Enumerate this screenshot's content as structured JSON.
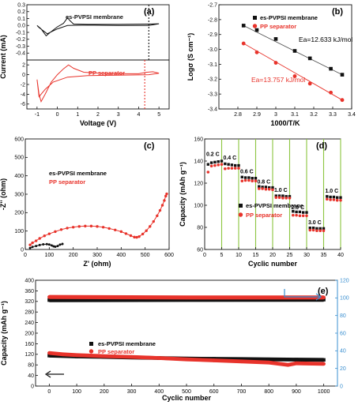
{
  "colors": {
    "black": "#111111",
    "red": "#e8332b",
    "blue": "#3a8fd0",
    "green": "#8bc53f"
  },
  "chart_data": [
    {
      "id": "a",
      "panel_label": "(a)",
      "type": "line",
      "xlabel": "Voltage (V)",
      "ylabel": "Current (mA)",
      "xlim": [
        -1.5,
        5.5
      ],
      "xticks": [
        -1,
        0,
        1,
        2,
        3,
        4,
        5
      ],
      "top": {
        "ylim": [
          -0.5,
          0.3
        ],
        "yticks": [
          0.3,
          0.2,
          0.1,
          0.0,
          -0.1,
          -0.2,
          -0.3,
          -0.4,
          -0.5
        ],
        "legend": "es-PVPSI membrane",
        "marker_x": 4.5,
        "loop": [
          [
            -1,
            0.0
          ],
          [
            -0.8,
            -0.05
          ],
          [
            -0.55,
            -0.15
          ],
          [
            -0.35,
            -0.1
          ],
          [
            0,
            -0.02
          ],
          [
            0.3,
            0.03
          ],
          [
            0.5,
            0.11
          ],
          [
            0.62,
            0.07
          ],
          [
            0.8,
            0.02
          ],
          [
            1.5,
            0.015
          ],
          [
            3,
            0.015
          ],
          [
            4.5,
            0.02
          ],
          [
            5,
            0.025
          ],
          [
            4.5,
            0.0
          ],
          [
            3,
            0.0
          ],
          [
            1.5,
            0.005
          ],
          [
            0.5,
            0.0
          ],
          [
            0,
            -0.05
          ],
          [
            -0.5,
            -0.12
          ],
          [
            -0.9,
            -0.03
          ],
          [
            -1,
            0.0
          ]
        ]
      },
      "bottom": {
        "ylim": [
          -7,
          3
        ],
        "yticks": [
          2,
          0,
          -2,
          -4,
          -6
        ],
        "legend": "PP separator",
        "marker_x": 4.3,
        "loop": [
          [
            -1,
            -1
          ],
          [
            -0.9,
            -4
          ],
          [
            -0.8,
            -5.5
          ],
          [
            -0.6,
            -4
          ],
          [
            -0.3,
            -1.5
          ],
          [
            0,
            0
          ],
          [
            0.3,
            1.2
          ],
          [
            0.55,
            2.0
          ],
          [
            0.8,
            1.3
          ],
          [
            1.3,
            0.5
          ],
          [
            2.5,
            0.2
          ],
          [
            4,
            0.2
          ],
          [
            4.4,
            0.5
          ],
          [
            4.7,
            0.6
          ],
          [
            5,
            0.3
          ],
          [
            4.5,
            0.0
          ],
          [
            3,
            -0.1
          ],
          [
            1.5,
            -0.2
          ],
          [
            0.5,
            -0.5
          ],
          [
            -0.2,
            -1.5
          ],
          [
            -0.6,
            -3
          ],
          [
            -0.9,
            -4.5
          ],
          [
            -1,
            -1
          ]
        ]
      }
    },
    {
      "id": "b",
      "panel_label": "(b)",
      "type": "scatter",
      "xlabel": "1000/T/K",
      "ylabel": "Logσ (S cm⁻¹)",
      "xlim": [
        2.7,
        3.4
      ],
      "xticks": [
        2.8,
        2.9,
        3.0,
        3.1,
        3.2,
        3.3,
        3.4
      ],
      "ylim": [
        -3.4,
        -2.7
      ],
      "yticks": [
        -2.7,
        -2.8,
        -2.9,
        -3.0,
        -3.1,
        -3.2,
        -3.3,
        -3.4
      ],
      "series": [
        {
          "name": "es-PVPSI membrane",
          "color": "black",
          "marker": "square",
          "x": [
            2.83,
            2.9,
            3.0,
            3.1,
            3.18,
            3.29,
            3.35
          ],
          "y": [
            -2.84,
            -2.87,
            -2.93,
            -3.01,
            -3.06,
            -3.13,
            -3.17
          ],
          "fit": [
            [
              2.83,
              -2.84
            ],
            [
              3.35,
              -3.17
            ]
          ],
          "annotation": "Ea=12.633 kJ/mol"
        },
        {
          "name": "PP separator",
          "color": "red",
          "marker": "circle",
          "x": [
            2.83,
            2.9,
            3.0,
            3.1,
            3.18,
            3.29,
            3.35
          ],
          "y": [
            -2.96,
            -3.02,
            -3.09,
            -3.18,
            -3.23,
            -3.29,
            -3.34
          ],
          "fit": [
            [
              2.83,
              -2.96
            ],
            [
              3.35,
              -3.34
            ]
          ],
          "annotation": "Ea=13.757 kJ/mol"
        }
      ]
    },
    {
      "id": "c",
      "panel_label": "(c)",
      "type": "scatter",
      "xlabel": "Z' (ohm)",
      "ylabel": "-Z'' (ohm)",
      "xlim": [
        0,
        600
      ],
      "xticks": [
        0,
        100,
        200,
        300,
        400,
        500,
        600
      ],
      "ylim": [
        0,
        600
      ],
      "yticks": [
        0,
        100,
        200,
        300,
        400,
        500,
        600
      ],
      "series": [
        {
          "name": "es-PVPSI membrane",
          "color": "black",
          "points": [
            [
              20,
              8
            ],
            [
              30,
              14
            ],
            [
              45,
              19
            ],
            [
              60,
              24
            ],
            [
              75,
              28
            ],
            [
              90,
              29
            ],
            [
              100,
              27
            ],
            [
              110,
              22
            ],
            [
              118,
              17
            ],
            [
              125,
              15
            ],
            [
              135,
              19
            ],
            [
              145,
              26
            ],
            [
              155,
              30
            ]
          ]
        },
        {
          "name": "PP separator",
          "color": "red",
          "points": [
            [
              20,
              25
            ],
            [
              30,
              36
            ],
            [
              45,
              47
            ],
            [
              60,
              60
            ],
            [
              80,
              74
            ],
            [
              100,
              85
            ],
            [
              125,
              97
            ],
            [
              150,
              108
            ],
            [
              175,
              116
            ],
            [
              200,
              121
            ],
            [
              225,
              125
            ],
            [
              250,
              127
            ],
            [
              275,
              127
            ],
            [
              300,
              125
            ],
            [
              325,
              121
            ],
            [
              350,
              114
            ],
            [
              375,
              106
            ],
            [
              400,
              97
            ],
            [
              420,
              86
            ],
            [
              440,
              75
            ],
            [
              455,
              67
            ],
            [
              465,
              66
            ],
            [
              475,
              70
            ],
            [
              490,
              84
            ],
            [
              505,
              102
            ],
            [
              520,
              125
            ],
            [
              535,
              152
            ],
            [
              550,
              183
            ],
            [
              562,
              212
            ],
            [
              572,
              240
            ],
            [
              580,
              266
            ],
            [
              586,
              290
            ],
            [
              590,
              302
            ]
          ]
        }
      ]
    },
    {
      "id": "d",
      "panel_label": "(d)",
      "type": "scatter",
      "xlabel": "Cyclic number",
      "ylabel": "Capacity (mAh g⁻¹)",
      "xlim": [
        0,
        40
      ],
      "xticks": [
        0,
        5,
        10,
        15,
        20,
        25,
        30,
        35,
        40
      ],
      "ylim": [
        60,
        160
      ],
      "yticks": [
        60,
        80,
        100,
        120,
        140,
        160
      ],
      "rate_boundaries": [
        5,
        10,
        15,
        20,
        25,
        30,
        35,
        40
      ],
      "rate_labels": [
        {
          "x": 2.4,
          "y": 144.5,
          "text": "0.2 C"
        },
        {
          "x": 7.4,
          "y": 141.5,
          "text": "0.4 C"
        },
        {
          "x": 12.4,
          "y": 129,
          "text": "0.6 C"
        },
        {
          "x": 17.4,
          "y": 119.5,
          "text": "0.8 C"
        },
        {
          "x": 22.4,
          "y": 112,
          "text": "1.0 C"
        },
        {
          "x": 27.4,
          "y": 96.5,
          "text": "2.0 C"
        },
        {
          "x": 32.4,
          "y": 83,
          "text": "3.0 C"
        },
        {
          "x": 37.4,
          "y": 111.5,
          "text": "1.0 C"
        }
      ],
      "series": [
        {
          "name": "es-PVPSI membrane",
          "color": "black",
          "marker": "square",
          "y": [
            137,
            138.5,
            139,
            139.5,
            140,
            137.5,
            137,
            136.5,
            136,
            136,
            125.5,
            125,
            125,
            124.5,
            124.5,
            117,
            116.5,
            116.5,
            116,
            116,
            108.5,
            108.5,
            108.5,
            108,
            108,
            94.5,
            94,
            94,
            93.5,
            93.5,
            79.5,
            79.5,
            79,
            79,
            79,
            108,
            107.5,
            107.5,
            107,
            107
          ]
        },
        {
          "name": "PP separator",
          "color": "red",
          "marker": "circle",
          "y": [
            130,
            135.5,
            136,
            136.5,
            137,
            133,
            133.5,
            133.5,
            133.5,
            133.5,
            122,
            122.5,
            122.5,
            122,
            122,
            115,
            115,
            114.5,
            114.5,
            114,
            107,
            107,
            106.5,
            106.5,
            106.5,
            91,
            91,
            90.5,
            90.5,
            90.5,
            77.5,
            77.5,
            77,
            77,
            77,
            105.5,
            105,
            105,
            104.5,
            104.5
          ]
        }
      ]
    },
    {
      "id": "e",
      "panel_label": "(e)",
      "type": "scatter",
      "xlabel": "Cyclic number",
      "ylabel": "Capacity (mAh g⁻¹)",
      "xlim": [
        -50,
        1050
      ],
      "xticks": [
        0,
        100,
        200,
        300,
        400,
        500,
        600,
        700,
        800,
        900,
        1000
      ],
      "ylim": [
        0,
        400
      ],
      "yticks": [
        0,
        40,
        80,
        120,
        160,
        200,
        240,
        280,
        320,
        360,
        400
      ],
      "y2lim": [
        0,
        120
      ],
      "y2ticks": [
        0,
        20,
        40,
        60,
        80,
        100,
        120
      ],
      "series": [
        {
          "name": "es-PVPSI membrane",
          "color": "black",
          "marker": "square",
          "axis": "capacity",
          "points": [
            [
              0,
              115
            ],
            [
              100,
              112
            ],
            [
              200,
              110
            ],
            [
              300,
              108
            ],
            [
              400,
              106
            ],
            [
              500,
              104
            ],
            [
              600,
              103
            ],
            [
              700,
              102
            ],
            [
              800,
              101
            ],
            [
              900,
              100
            ],
            [
              1000,
              99
            ]
          ]
        },
        {
          "name": "PP separator",
          "color": "red",
          "marker": "circle",
          "axis": "capacity",
          "points": [
            [
              0,
              125
            ],
            [
              50,
              120
            ],
            [
              100,
              117
            ],
            [
              200,
              113
            ],
            [
              300,
              110
            ],
            [
              400,
              106
            ],
            [
              500,
              101
            ],
            [
              600,
              97
            ],
            [
              700,
              93
            ],
            [
              800,
              89
            ],
            [
              870,
              80
            ],
            [
              900,
              86
            ],
            [
              1000,
              84
            ]
          ]
        },
        {
          "name": "es-PVPSI membrane",
          "color": "black",
          "marker": "square",
          "axis": "efficiency",
          "points": [
            [
              0,
              97.5
            ],
            [
              500,
              97.8
            ],
            [
              1000,
              98
            ]
          ]
        },
        {
          "name": "PP separator",
          "color": "red",
          "marker": "circle",
          "axis": "efficiency",
          "points": [
            [
              0,
              101
            ],
            [
              500,
              100.5
            ],
            [
              1000,
              100.5
            ]
          ]
        }
      ]
    }
  ]
}
